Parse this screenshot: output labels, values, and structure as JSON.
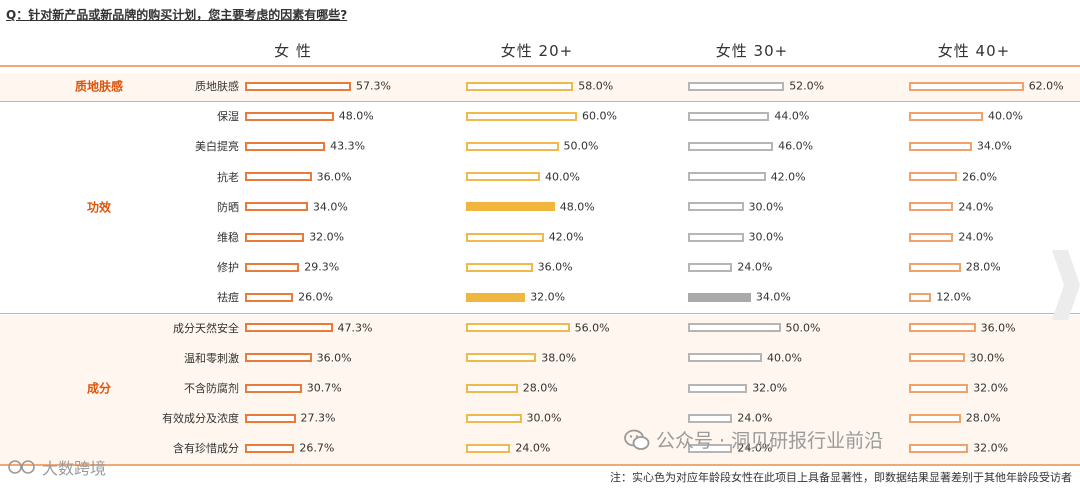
{
  "question": "Q：针对新产品或新品牌的购买计划，您主要考虑的因素有哪些?",
  "note": "注：实心色为对应年龄段女性在此项目上具备显著性，即数据结果显著差别于其他年龄段受访者",
  "watermark_right": "公众号 · 洞见研报行业前沿",
  "watermark_left": "大数跨境",
  "colors": {
    "accent": "#e0540a",
    "bar_women": "#e87a3a",
    "bar_20": "#f1b84d",
    "bar_30": "#b5b5b5",
    "bar_40": "#f0a26a"
  },
  "chart_data": {
    "type": "bar",
    "orientation": "horizontal",
    "columns": [
      "女 性",
      "女性 20+",
      "女性 30+",
      "女性 40+"
    ],
    "groups": [
      {
        "name": "质地肤感",
        "items": [
          {
            "label": "质地肤感",
            "values": [
              57.3,
              58.0,
              52.0,
              62.0
            ],
            "display": [
              "57.3%",
              "58.0%",
              "52.0%",
              "62.0%"
            ],
            "significant": [
              false,
              false,
              false,
              false
            ]
          }
        ]
      },
      {
        "name": "功效",
        "items": [
          {
            "label": "保湿",
            "values": [
              48.0,
              60.0,
              44.0,
              40.0
            ],
            "display": [
              "48.0%",
              "60.0%",
              "44.0%",
              "40.0%"
            ],
            "significant": [
              false,
              false,
              false,
              false
            ]
          },
          {
            "label": "美白提亮",
            "values": [
              43.3,
              50.0,
              46.0,
              34.0
            ],
            "display": [
              "43.3%",
              "50.0%",
              "46.0%",
              "34.0%"
            ],
            "significant": [
              false,
              false,
              false,
              false
            ]
          },
          {
            "label": "抗老",
            "values": [
              36.0,
              40.0,
              42.0,
              26.0
            ],
            "display": [
              "36.0%",
              "40.0%",
              "42.0%",
              "26.0%"
            ],
            "significant": [
              false,
              false,
              false,
              false
            ]
          },
          {
            "label": "防晒",
            "values": [
              34.0,
              48.0,
              30.0,
              24.0
            ],
            "display": [
              "34.0%",
              "48.0%",
              "30.0%",
              "24.0%"
            ],
            "significant": [
              false,
              true,
              false,
              false
            ]
          },
          {
            "label": "维稳",
            "values": [
              32.0,
              42.0,
              30.0,
              24.0
            ],
            "display": [
              "32.0%",
              "42.0%",
              "30.0%",
              "24.0%"
            ],
            "significant": [
              false,
              false,
              false,
              false
            ]
          },
          {
            "label": "修护",
            "values": [
              29.3,
              36.0,
              24.0,
              28.0
            ],
            "display": [
              "29.3%",
              "36.0%",
              "24.0%",
              "28.0%"
            ],
            "significant": [
              false,
              false,
              false,
              false
            ]
          },
          {
            "label": "祛痘",
            "values": [
              26.0,
              32.0,
              34.0,
              12.0
            ],
            "display": [
              "26.0%",
              "32.0%",
              "34.0%",
              "12.0%"
            ],
            "significant": [
              false,
              true,
              true,
              false
            ]
          }
        ]
      },
      {
        "name": "成分",
        "items": [
          {
            "label": "成分天然安全",
            "values": [
              47.3,
              56.0,
              50.0,
              36.0
            ],
            "display": [
              "47.3%",
              "56.0%",
              "50.0%",
              "36.0%"
            ],
            "significant": [
              false,
              false,
              false,
              false
            ]
          },
          {
            "label": "温和零刺激",
            "values": [
              36.0,
              38.0,
              40.0,
              30.0
            ],
            "display": [
              "36.0%",
              "38.0%",
              "40.0%",
              "30.0%"
            ],
            "significant": [
              false,
              false,
              false,
              false
            ]
          },
          {
            "label": "不含防腐剂",
            "values": [
              30.7,
              28.0,
              32.0,
              32.0
            ],
            "display": [
              "30.7%",
              "28.0%",
              "32.0%",
              "32.0%"
            ],
            "significant": [
              false,
              false,
              false,
              false
            ]
          },
          {
            "label": "有效成分及浓度",
            "values": [
              27.3,
              30.0,
              24.0,
              28.0
            ],
            "display": [
              "27.3%",
              "30.0%",
              "24.0%",
              "28.0%"
            ],
            "significant": [
              false,
              false,
              false,
              false
            ]
          },
          {
            "label": "含有珍惜成分",
            "values": [
              26.7,
              24.0,
              24.0,
              32.0
            ],
            "display": [
              "26.7%",
              "24.0%",
              "24.0%",
              "32.0%"
            ],
            "significant": [
              false,
              false,
              false,
              false
            ]
          }
        ]
      }
    ]
  }
}
